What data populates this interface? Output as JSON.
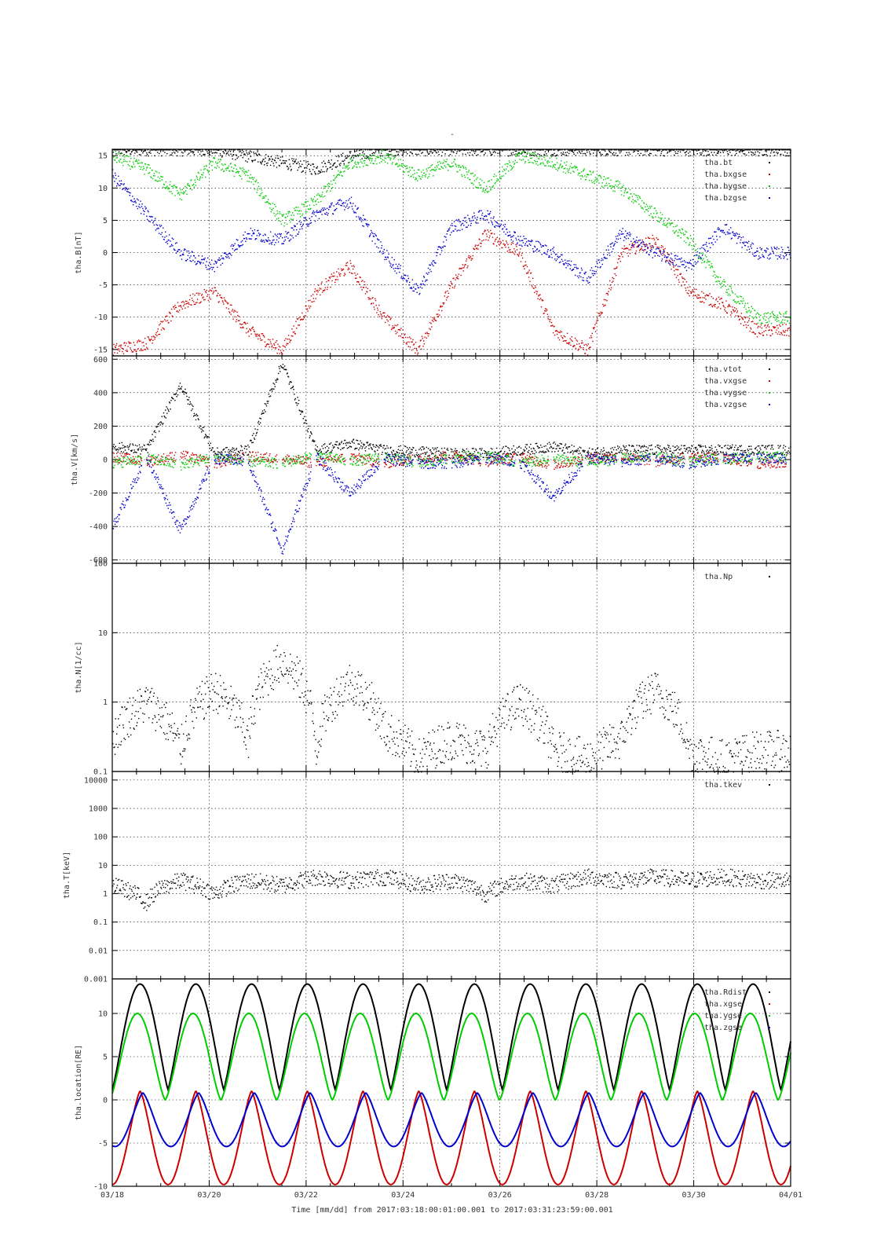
{
  "page": {
    "title": "-",
    "footer": "Time [mm/dd]  from 2017:03:18:00:01:00.001  to  2017:03:31:23:59:00.001"
  },
  "chart_data": [
    {
      "id": "B",
      "type": "scatter",
      "ylabel": "tha.B[nT]",
      "ylim": [
        -16,
        16
      ],
      "yticks": [
        -15,
        -10,
        -5,
        0,
        5,
        10,
        15
      ],
      "legend_position": "top-right",
      "series": [
        {
          "name": "tha.bt",
          "color": "#000000",
          "y": [
            16,
            16,
            16,
            16,
            15,
            14,
            13,
            15,
            16,
            16,
            16,
            16,
            16,
            16,
            16,
            16,
            16,
            16,
            16,
            16
          ]
        },
        {
          "name": "tha.bxgse",
          "color": "#cc0000",
          "y": [
            -15,
            -14,
            -8,
            -6,
            -12,
            -15,
            -6,
            -2,
            -10,
            -15,
            -5,
            3,
            0,
            -12,
            -15,
            0,
            2,
            -6,
            -8,
            -12
          ]
        },
        {
          "name": "tha.bygse",
          "color": "#00cc00",
          "y": [
            15,
            13,
            9,
            14,
            12,
            5,
            8,
            14,
            15,
            12,
            14,
            10,
            15,
            14,
            12,
            10,
            6,
            2,
            -5,
            -10
          ]
        },
        {
          "name": "tha.bzgse",
          "color": "#0000cc",
          "y": [
            12,
            6,
            0,
            -2,
            3,
            2,
            6,
            8,
            0,
            -6,
            4,
            6,
            2,
            0,
            -4,
            3,
            0,
            -2,
            4,
            0
          ]
        }
      ]
    },
    {
      "id": "V",
      "type": "scatter",
      "ylabel": "tha.V[km/s]",
      "ylim": [
        -620,
        620
      ],
      "yticks": [
        -600,
        -400,
        -200,
        0,
        200,
        400,
        600
      ],
      "legend_position": "top-right",
      "series": [
        {
          "name": "tha.vtot",
          "color": "#000000",
          "y": [
            80,
            60,
            450,
            40,
            60,
            580,
            60,
            100,
            60,
            50,
            40,
            40,
            60,
            80,
            40,
            60,
            60,
            60,
            60,
            60
          ]
        },
        {
          "name": "tha.vxgse",
          "color": "#cc0000",
          "y": [
            20,
            -10,
            30,
            -20,
            20,
            10,
            -20,
            20,
            -20,
            10,
            30,
            -10,
            20,
            -30,
            10,
            20,
            -10,
            20,
            10,
            -20
          ]
        },
        {
          "name": "tha.vygse",
          "color": "#00cc00",
          "y": [
            -20,
            10,
            -30,
            20,
            -10,
            -20,
            30,
            -10,
            20,
            -20,
            10,
            30,
            -20,
            10,
            -20,
            10,
            20,
            -10,
            10,
            20
          ]
        },
        {
          "name": "tha.vzgse",
          "color": "#0000cc",
          "y": [
            -400,
            20,
            -420,
            10,
            -10,
            -540,
            20,
            -200,
            10,
            -20,
            -20,
            10,
            -10,
            -220,
            10,
            -10,
            10,
            -20,
            10,
            10
          ]
        }
      ]
    },
    {
      "id": "N",
      "type": "scatter",
      "ylabel": "tha.N[1/cc]",
      "scale": "log",
      "ylim": [
        0.1,
        100
      ],
      "yticks": [
        0.1,
        1,
        10,
        100
      ],
      "yticklabels": [
        "0.1",
        "1",
        "10",
        "100"
      ],
      "legend_position": "top-right",
      "series": [
        {
          "name": "tha.Np",
          "color": "#000000",
          "y": [
            0.3,
            1.0,
            0.2,
            1.5,
            0.25,
            4.0,
            0.2,
            2.0,
            0.4,
            0.15,
            0.3,
            0.2,
            1.0,
            0.2,
            0.15,
            0.3,
            1.5,
            0.2,
            0.15,
            0.2
          ]
        }
      ]
    },
    {
      "id": "T",
      "type": "scatter",
      "ylabel": "tha.T[keV]",
      "scale": "log",
      "ylim": [
        0.001,
        20000
      ],
      "yticks": [
        0.001,
        0.01,
        0.1,
        1,
        10,
        100,
        1000,
        10000
      ],
      "yticklabels": [
        "0.001",
        "0.01",
        "0.1",
        "1",
        "10",
        "100",
        "1000",
        "10000"
      ],
      "legend_position": "top-right",
      "series": [
        {
          "name": "tha.tkev",
          "color": "#000000",
          "y": [
            2,
            0.5,
            3,
            1,
            3,
            2,
            4,
            3,
            4,
            2,
            3,
            1,
            3,
            2,
            4,
            3,
            4,
            3,
            4,
            3
          ]
        }
      ]
    },
    {
      "id": "location",
      "type": "line",
      "ylabel": "tha.location[RE]",
      "ylim": [
        -10,
        14
      ],
      "yticks": [
        -10,
        -5,
        0,
        5,
        10
      ],
      "legend_position": "top-right",
      "xlabel": "Time [mm/dd]",
      "xticks": [
        "03/18",
        "03/20",
        "03/22",
        "03/24",
        "03/26",
        "03/28",
        "03/30",
        "04/01"
      ],
      "orbit_period_days": 1.15,
      "series": [
        {
          "name": "tha.Rdist",
          "color": "#000000",
          "min": 1.2,
          "max": 13.4
        },
        {
          "name": "tha.xgse",
          "color": "#cc0000",
          "min": -9.8,
          "max": 1.0
        },
        {
          "name": "tha.ygse",
          "color": "#00cc00",
          "min": 0.0,
          "max": 10.0
        },
        {
          "name": "tha.zgse",
          "color": "#0000cc",
          "min": -5.4,
          "max": 0.8
        }
      ]
    }
  ]
}
